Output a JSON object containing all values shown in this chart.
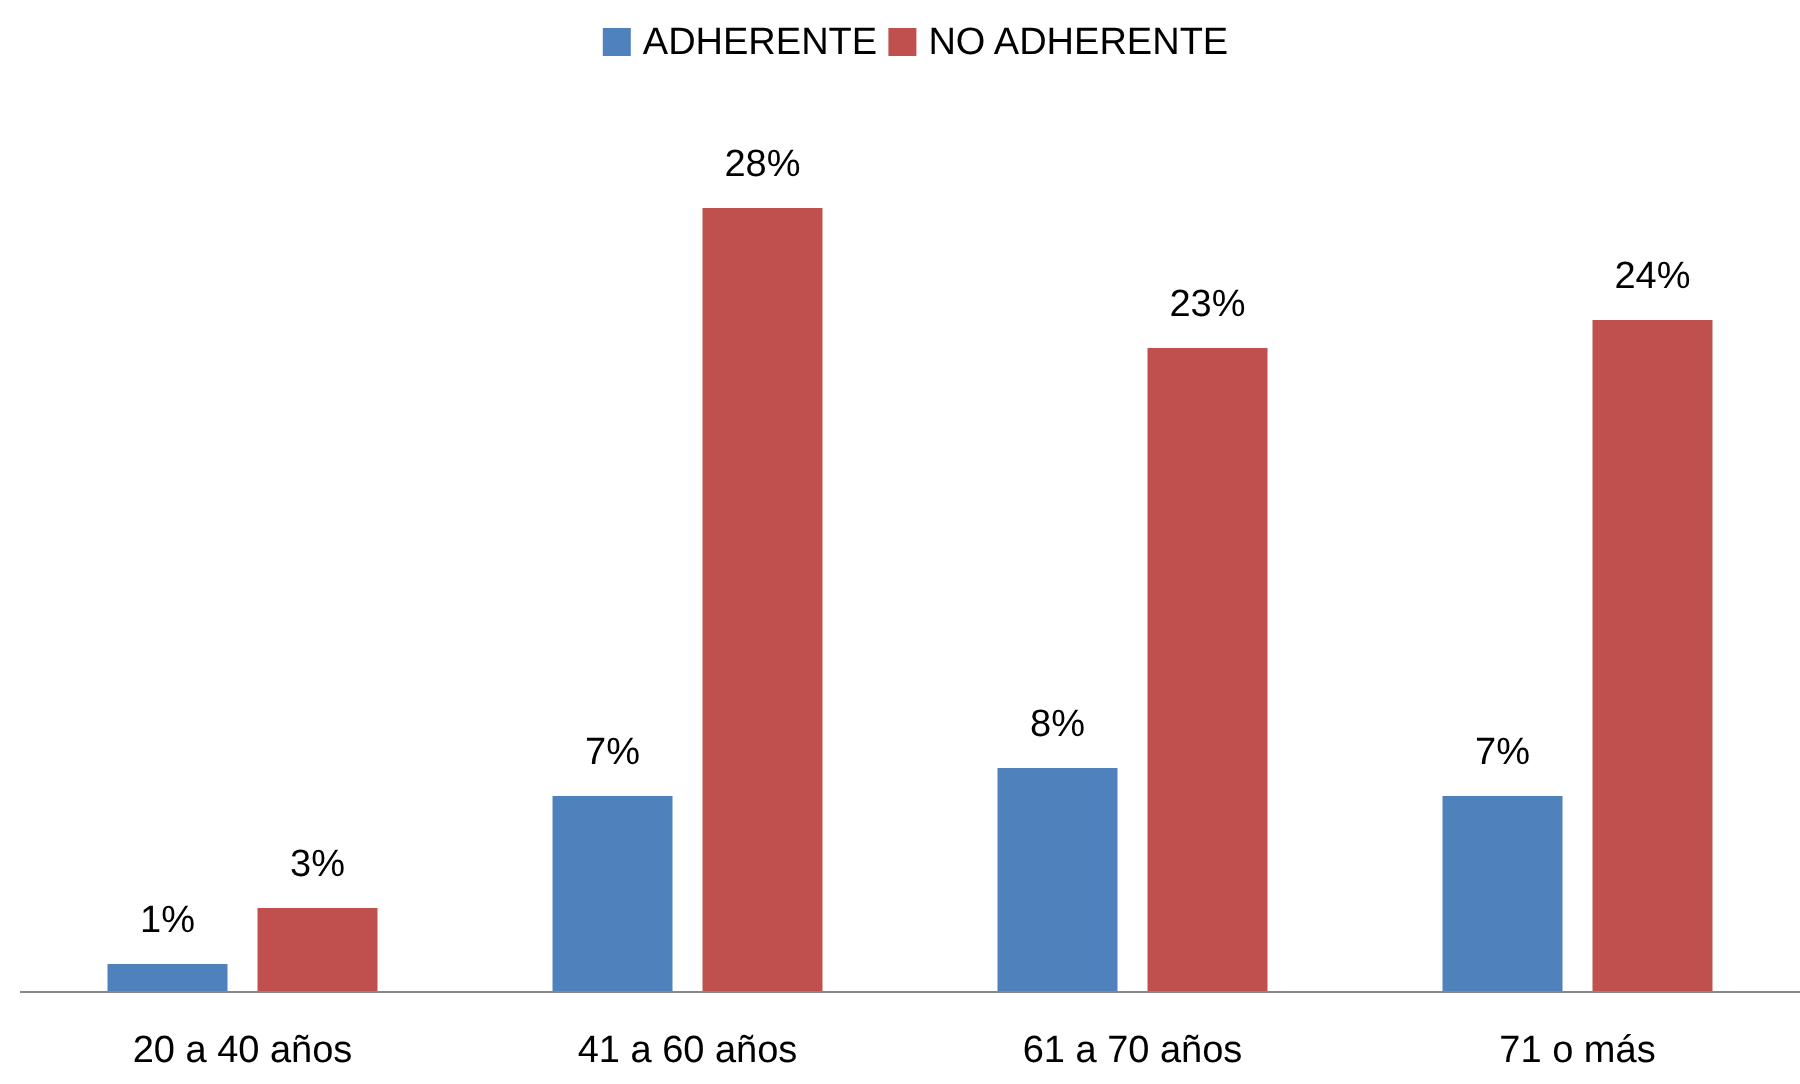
{
  "chart_data": {
    "type": "bar",
    "categories": [
      "20 a 40 años",
      "41 a 60 años",
      "61 a 70 años",
      "71 o más"
    ],
    "series": [
      {
        "name": "ADHERENTE",
        "color": "#4f81bd",
        "values": [
          1,
          7,
          8,
          7
        ],
        "value_labels": [
          "1%",
          "7%",
          "8%",
          "7%"
        ]
      },
      {
        "name": "NO ADHERENTE",
        "color": "#c0504d",
        "values": [
          3,
          28,
          23,
          24
        ],
        "value_labels": [
          "3%",
          "28%",
          "23%",
          "24%"
        ]
      }
    ],
    "legend": "top"
  }
}
